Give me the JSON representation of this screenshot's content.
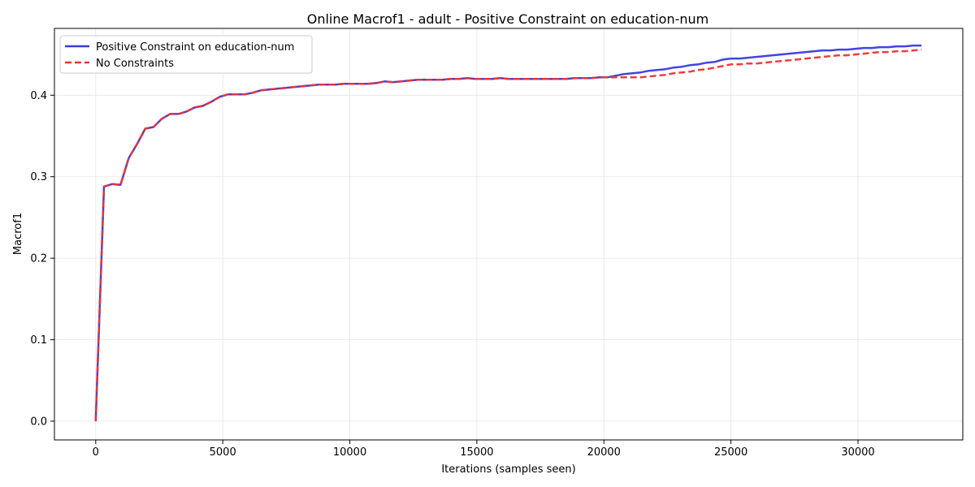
{
  "chart_data": {
    "type": "line",
    "title": "Online Macrof1 - adult - Positive Constraint on education-num",
    "xlabel": "Iterations (samples seen)",
    "ylabel": "Macrof1",
    "xlim": [
      -1625,
      34125
    ],
    "ylim": [
      -0.023,
      0.482
    ],
    "x_ticks": [
      0,
      5000,
      10000,
      15000,
      20000,
      25000,
      30000
    ],
    "y_ticks": [
      0.0,
      0.1,
      0.2,
      0.3,
      0.4
    ],
    "x_tick_labels": [
      "0",
      "5000",
      "10000",
      "15000",
      "20000",
      "25000",
      "30000"
    ],
    "y_tick_labels": [
      "0.0",
      "0.1",
      "0.2",
      "0.3",
      "0.4"
    ],
    "grid": true,
    "legend_position": "top-left",
    "series": [
      {
        "name": "Positive Constraint on education-num",
        "color": "#3a3adc",
        "style": "solid",
        "x": [
          0,
          325,
          650,
          975,
          1300,
          1625,
          1950,
          2275,
          2600,
          2925,
          3250,
          3575,
          3900,
          4225,
          4550,
          4875,
          5200,
          5525,
          5850,
          6175,
          6500,
          6825,
          7150,
          7475,
          7800,
          8125,
          8450,
          8775,
          9100,
          9425,
          9750,
          10075,
          10400,
          10725,
          11050,
          11375,
          11700,
          12025,
          12350,
          12675,
          13000,
          13325,
          13650,
          13975,
          14300,
          14625,
          14950,
          15275,
          15600,
          15925,
          16250,
          16575,
          16900,
          17225,
          17550,
          17875,
          18200,
          18525,
          18850,
          19175,
          19500,
          19825,
          20150,
          20475,
          20800,
          21125,
          21450,
          21775,
          22100,
          22425,
          22750,
          23075,
          23400,
          23725,
          24050,
          24375,
          24700,
          25025,
          25350,
          25675,
          26000,
          26325,
          26650,
          26975,
          27300,
          27625,
          27950,
          28275,
          28600,
          28925,
          29250,
          29575,
          29900,
          30225,
          30550,
          30875,
          31200,
          31525,
          31850,
          32175,
          32500
        ],
        "y": [
          0.0,
          0.288,
          0.291,
          0.29,
          0.323,
          0.34,
          0.359,
          0.361,
          0.371,
          0.377,
          0.377,
          0.38,
          0.385,
          0.387,
          0.392,
          0.398,
          0.401,
          0.401,
          0.401,
          0.403,
          0.406,
          0.407,
          0.408,
          0.409,
          0.41,
          0.411,
          0.412,
          0.413,
          0.413,
          0.413,
          0.414,
          0.414,
          0.414,
          0.414,
          0.415,
          0.417,
          0.416,
          0.417,
          0.418,
          0.419,
          0.419,
          0.419,
          0.419,
          0.42,
          0.42,
          0.421,
          0.42,
          0.42,
          0.42,
          0.421,
          0.42,
          0.42,
          0.42,
          0.42,
          0.42,
          0.42,
          0.42,
          0.42,
          0.421,
          0.421,
          0.421,
          0.422,
          0.422,
          0.424,
          0.426,
          0.427,
          0.428,
          0.43,
          0.431,
          0.432,
          0.434,
          0.435,
          0.437,
          0.438,
          0.44,
          0.441,
          0.444,
          0.445,
          0.445,
          0.446,
          0.447,
          0.448,
          0.449,
          0.45,
          0.451,
          0.452,
          0.453,
          0.454,
          0.455,
          0.455,
          0.456,
          0.456,
          0.457,
          0.458,
          0.458,
          0.459,
          0.459,
          0.46,
          0.46,
          0.461,
          0.461
        ]
      },
      {
        "name": "No Constraints",
        "color": "#ee3333",
        "style": "dashed",
        "x": [
          0,
          325,
          650,
          975,
          1300,
          1625,
          1950,
          2275,
          2600,
          2925,
          3250,
          3575,
          3900,
          4225,
          4550,
          4875,
          5200,
          5525,
          5850,
          6175,
          6500,
          6825,
          7150,
          7475,
          7800,
          8125,
          8450,
          8775,
          9100,
          9425,
          9750,
          10075,
          10400,
          10725,
          11050,
          11375,
          11700,
          12025,
          12350,
          12675,
          13000,
          13325,
          13650,
          13975,
          14300,
          14625,
          14950,
          15275,
          15600,
          15925,
          16250,
          16575,
          16900,
          17225,
          17550,
          17875,
          18200,
          18525,
          18850,
          19175,
          19500,
          19825,
          20150,
          20475,
          20800,
          21125,
          21450,
          21775,
          22100,
          22425,
          22750,
          23075,
          23400,
          23725,
          24050,
          24375,
          24700,
          25025,
          25350,
          25675,
          26000,
          26325,
          26650,
          26975,
          27300,
          27625,
          27950,
          28275,
          28600,
          28925,
          29250,
          29575,
          29900,
          30225,
          30550,
          30875,
          31200,
          31525,
          31850,
          32175,
          32500
        ],
        "y": [
          0.0,
          0.288,
          0.291,
          0.29,
          0.323,
          0.34,
          0.359,
          0.361,
          0.371,
          0.377,
          0.377,
          0.38,
          0.385,
          0.387,
          0.392,
          0.398,
          0.401,
          0.401,
          0.401,
          0.403,
          0.406,
          0.407,
          0.408,
          0.409,
          0.41,
          0.411,
          0.412,
          0.413,
          0.413,
          0.413,
          0.414,
          0.414,
          0.414,
          0.414,
          0.415,
          0.417,
          0.416,
          0.417,
          0.418,
          0.419,
          0.419,
          0.419,
          0.419,
          0.42,
          0.42,
          0.421,
          0.42,
          0.42,
          0.42,
          0.421,
          0.42,
          0.42,
          0.42,
          0.42,
          0.42,
          0.42,
          0.42,
          0.42,
          0.421,
          0.421,
          0.421,
          0.422,
          0.422,
          0.422,
          0.422,
          0.422,
          0.422,
          0.423,
          0.424,
          0.425,
          0.427,
          0.428,
          0.429,
          0.431,
          0.432,
          0.434,
          0.436,
          0.438,
          0.438,
          0.439,
          0.439,
          0.44,
          0.441,
          0.442,
          0.443,
          0.444,
          0.445,
          0.446,
          0.447,
          0.448,
          0.449,
          0.449,
          0.45,
          0.451,
          0.452,
          0.453,
          0.453,
          0.454,
          0.454,
          0.455,
          0.456
        ]
      }
    ]
  }
}
